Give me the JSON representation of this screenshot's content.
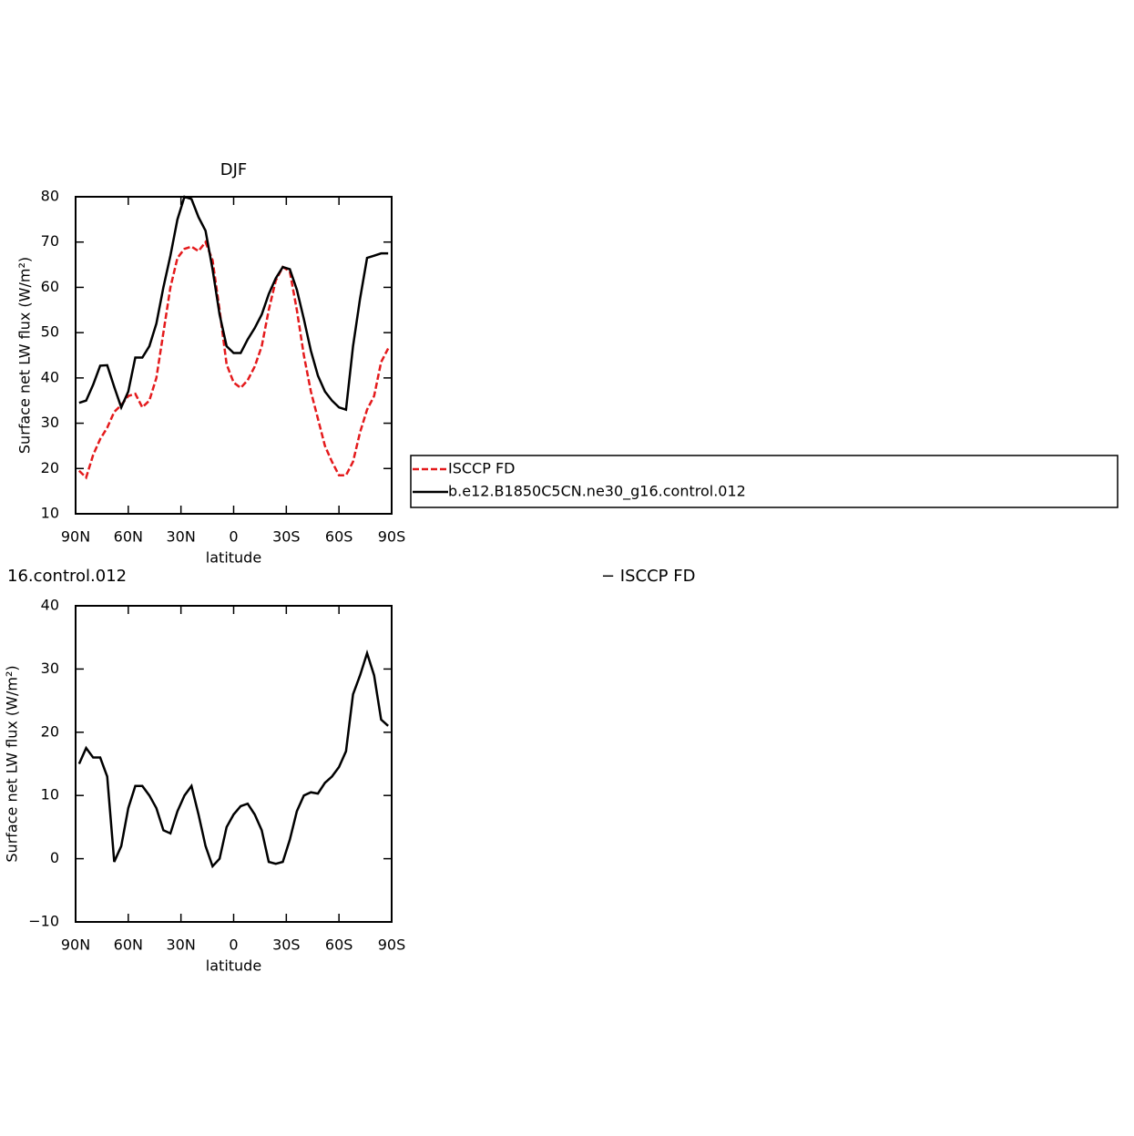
{
  "chart_data": [
    {
      "type": "line",
      "title": "DJF",
      "xlabel": "latitude",
      "ylabel": "Surface net LW flux (W/m²)",
      "x": [
        88,
        84,
        80,
        76,
        72,
        68,
        64,
        60,
        56,
        52,
        48,
        44,
        40,
        36,
        32,
        28,
        24,
        20,
        16,
        12,
        8,
        4,
        0,
        -4,
        -8,
        -12,
        -16,
        -20,
        -24,
        -28,
        -32,
        -36,
        -40,
        -44,
        -48,
        -52,
        -56,
        -60,
        -64,
        -68,
        -72,
        -76,
        -80,
        -84,
        -88
      ],
      "xlim": [
        90,
        -90
      ],
      "xticks": [
        {
          "value": 90,
          "label": "90N"
        },
        {
          "value": 60,
          "label": "60N"
        },
        {
          "value": 30,
          "label": "30N"
        },
        0,
        {
          "value": -30,
          "label": "30S"
        },
        {
          "value": -60,
          "label": "60S"
        },
        {
          "value": -90,
          "label": "90S"
        }
      ],
      "ylim": [
        10,
        80
      ],
      "yticks": [
        10,
        20,
        30,
        40,
        50,
        60,
        70,
        80
      ],
      "series": [
        {
          "name": "ISCCP FD",
          "color": "#e41a1c",
          "style": "dashed",
          "values": [
            19.5,
            18,
            23,
            26.5,
            29,
            32.5,
            34,
            36,
            36.5,
            33.5,
            35,
            40,
            50,
            60,
            66.5,
            68.5,
            69,
            68,
            70,
            66,
            55,
            43,
            39,
            37.8,
            39.5,
            42.5,
            47,
            55,
            61.5,
            64.5,
            63.5,
            55,
            45,
            37,
            31,
            25,
            21.5,
            18.5,
            18.5,
            21.5,
            28,
            33,
            36,
            43.5,
            46.5
          ]
        },
        {
          "name": "b.e12.B1850C5CN.ne30_g16.control.012",
          "color": "#000000",
          "style": "solid",
          "values": [
            34.5,
            35,
            38.5,
            42.7,
            42.8,
            38,
            33.5,
            37,
            44.5,
            44.5,
            47,
            52,
            60,
            67,
            75,
            80,
            79.5,
            75.5,
            72.5,
            64,
            54,
            47,
            45.5,
            45.5,
            48.5,
            51,
            54,
            58.5,
            62,
            64.5,
            64,
            59.5,
            53,
            46,
            40.5,
            37,
            35,
            33.5,
            33,
            47,
            57.5,
            66.5,
            67,
            67.5,
            67.5
          ]
        }
      ]
    },
    {
      "type": "line",
      "title": "16.control.012",
      "subtitle": "− ISCCP FD",
      "xlabel": "latitude",
      "ylabel": "Surface net LW flux (W/m²)",
      "x": [
        88,
        84,
        80,
        76,
        72,
        68,
        64,
        60,
        56,
        52,
        48,
        44,
        40,
        36,
        32,
        28,
        24,
        20,
        16,
        12,
        8,
        4,
        0,
        -4,
        -8,
        -12,
        -16,
        -20,
        -24,
        -28,
        -32,
        -36,
        -40,
        -44,
        -48,
        -52,
        -56,
        -60,
        -64,
        -68,
        -72,
        -76,
        -80,
        -84,
        -88
      ],
      "xlim": [
        90,
        -90
      ],
      "xticks": [
        {
          "value": 90,
          "label": "90N"
        },
        {
          "value": 60,
          "label": "60N"
        },
        {
          "value": 30,
          "label": "30N"
        },
        0,
        {
          "value": -30,
          "label": "30S"
        },
        {
          "value": -60,
          "label": "60S"
        },
        {
          "value": -90,
          "label": "90S"
        }
      ],
      "ylim": [
        -10,
        40
      ],
      "yticks": [
        {
          "value": -10,
          "label": "−10"
        },
        0,
        10,
        20,
        30,
        40
      ],
      "series": [
        {
          "color": "#000000",
          "style": "solid",
          "values": [
            15,
            17.5,
            16,
            16,
            13,
            -0.5,
            2,
            8,
            11.5,
            11.5,
            10,
            8,
            4.5,
            4,
            7.5,
            10,
            11.5,
            7,
            2,
            -1.2,
            0,
            5,
            7,
            8.3,
            8.7,
            7,
            4.5,
            -0.5,
            -0.8,
            -0.5,
            3,
            7.5,
            10,
            10.5,
            10.3,
            12,
            13,
            14.5,
            17,
            26,
            29,
            32.5,
            29,
            22,
            21
          ]
        }
      ]
    }
  ]
}
